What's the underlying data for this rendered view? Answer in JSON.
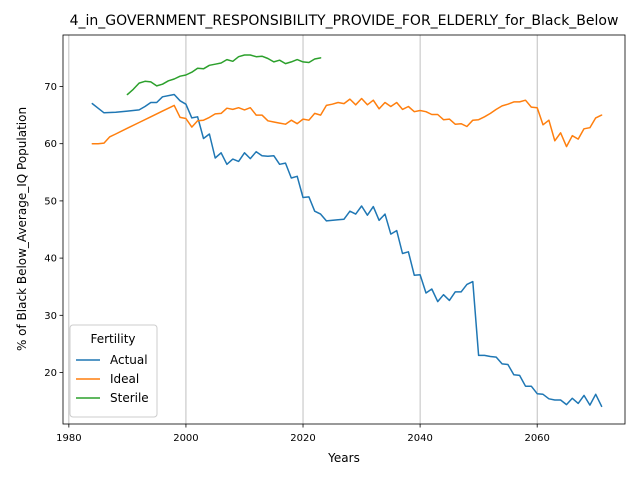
{
  "chart_data": {
    "type": "line",
    "title": "4_in_GOVERNMENT_RESPONSIBILITY_PROVIDE_FOR_ELDERLY_for_Black_Below",
    "xlabel": "Years",
    "ylabel": "% of Black Below_Average_IQ Population",
    "xlim": [
      1979,
      2075
    ],
    "ylim": [
      11,
      79
    ],
    "xticks": [
      1980,
      2000,
      2020,
      2040,
      2060
    ],
    "yticks": [
      20,
      30,
      40,
      50,
      60,
      70
    ],
    "xtick_labels": [
      "1980",
      "2000",
      "2020",
      "2040",
      "2060"
    ],
    "ytick_labels": [
      "20",
      "30",
      "40",
      "50",
      "60",
      "70"
    ],
    "grid": "x-axis vertical gridlines",
    "legend": {
      "title": "Fertility",
      "placement": "lower-left"
    },
    "series": [
      {
        "name": "Actual",
        "color": "#1f77b4",
        "points": [
          [
            1984,
            67.0
          ],
          [
            1985,
            66.2
          ],
          [
            1986,
            65.4
          ],
          [
            1988,
            65.5
          ],
          [
            1990,
            65.7
          ],
          [
            1992,
            65.9
          ],
          [
            1993,
            66.5
          ],
          [
            1994,
            67.2
          ],
          [
            1995,
            67.2
          ],
          [
            1996,
            68.2
          ],
          [
            1998,
            68.6
          ],
          [
            1999,
            67.5
          ],
          [
            2000,
            66.9
          ],
          [
            2001,
            64.5
          ],
          [
            2002,
            64.7
          ],
          [
            2003,
            60.9
          ],
          [
            2004,
            61.7
          ],
          [
            2005,
            57.5
          ],
          [
            2006,
            58.4
          ],
          [
            2007,
            56.4
          ],
          [
            2008,
            57.3
          ],
          [
            2009,
            56.9
          ],
          [
            2010,
            58.4
          ],
          [
            2011,
            57.4
          ],
          [
            2012,
            58.6
          ],
          [
            2013,
            57.9
          ],
          [
            2014,
            57.8
          ],
          [
            2015,
            57.9
          ],
          [
            2016,
            56.4
          ],
          [
            2017,
            56.6
          ],
          [
            2018,
            54.0
          ],
          [
            2019,
            54.3
          ],
          [
            2020,
            50.6
          ],
          [
            2021,
            50.7
          ],
          [
            2022,
            48.2
          ],
          [
            2023,
            47.7
          ],
          [
            2024,
            46.5
          ],
          [
            2026,
            46.7
          ],
          [
            2027,
            46.8
          ],
          [
            2028,
            48.2
          ],
          [
            2029,
            47.7
          ],
          [
            2030,
            49.1
          ],
          [
            2031,
            47.5
          ],
          [
            2032,
            49.0
          ],
          [
            2033,
            46.6
          ],
          [
            2034,
            47.7
          ],
          [
            2035,
            44.2
          ],
          [
            2036,
            44.8
          ],
          [
            2037,
            40.8
          ],
          [
            2038,
            41.1
          ],
          [
            2039,
            37.0
          ],
          [
            2040,
            37.1
          ],
          [
            2041,
            33.9
          ],
          [
            2042,
            34.6
          ],
          [
            2043,
            32.4
          ],
          [
            2044,
            33.6
          ],
          [
            2045,
            32.6
          ],
          [
            2046,
            34.1
          ],
          [
            2047,
            34.1
          ],
          [
            2048,
            35.4
          ],
          [
            2049,
            35.9
          ],
          [
            2050,
            23.0
          ],
          [
            2051,
            23.0
          ],
          [
            2052,
            22.8
          ],
          [
            2053,
            22.7
          ],
          [
            2054,
            21.5
          ],
          [
            2055,
            21.4
          ],
          [
            2056,
            19.6
          ],
          [
            2057,
            19.5
          ],
          [
            2058,
            17.6
          ],
          [
            2059,
            17.6
          ],
          [
            2060,
            16.3
          ],
          [
            2061,
            16.2
          ],
          [
            2062,
            15.4
          ],
          [
            2063,
            15.2
          ],
          [
            2064,
            15.2
          ],
          [
            2065,
            14.4
          ],
          [
            2066,
            15.5
          ],
          [
            2067,
            14.6
          ],
          [
            2068,
            16.0
          ],
          [
            2069,
            14.3
          ],
          [
            2070,
            16.2
          ],
          [
            2071,
            14.1
          ]
        ]
      },
      {
        "name": "Ideal",
        "color": "#ff7f0e",
        "points": [
          [
            1984,
            60.0
          ],
          [
            1985,
            60.0
          ],
          [
            1986,
            60.1
          ],
          [
            1987,
            61.2
          ],
          [
            1988,
            61.7
          ],
          [
            1990,
            62.7
          ],
          [
            1992,
            63.7
          ],
          [
            1994,
            64.7
          ],
          [
            1996,
            65.7
          ],
          [
            1998,
            66.7
          ],
          [
            1999,
            64.6
          ],
          [
            2000,
            64.4
          ],
          [
            2001,
            62.9
          ],
          [
            2002,
            64.0
          ],
          [
            2003,
            64.1
          ],
          [
            2004,
            64.6
          ],
          [
            2005,
            65.2
          ],
          [
            2006,
            65.3
          ],
          [
            2007,
            66.2
          ],
          [
            2008,
            66.0
          ],
          [
            2009,
            66.3
          ],
          [
            2010,
            65.9
          ],
          [
            2011,
            66.3
          ],
          [
            2012,
            65.0
          ],
          [
            2013,
            65.0
          ],
          [
            2014,
            64.0
          ],
          [
            2015,
            63.8
          ],
          [
            2016,
            63.6
          ],
          [
            2017,
            63.4
          ],
          [
            2018,
            64.1
          ],
          [
            2019,
            63.5
          ],
          [
            2020,
            64.3
          ],
          [
            2021,
            64.1
          ],
          [
            2022,
            65.3
          ],
          [
            2023,
            65.0
          ],
          [
            2024,
            66.7
          ],
          [
            2025,
            66.9
          ],
          [
            2026,
            67.2
          ],
          [
            2027,
            67.0
          ],
          [
            2028,
            67.8
          ],
          [
            2029,
            66.8
          ],
          [
            2030,
            67.9
          ],
          [
            2031,
            66.8
          ],
          [
            2032,
            67.6
          ],
          [
            2033,
            66.1
          ],
          [
            2034,
            67.2
          ],
          [
            2035,
            66.5
          ],
          [
            2036,
            67.2
          ],
          [
            2037,
            66.0
          ],
          [
            2038,
            66.5
          ],
          [
            2039,
            65.6
          ],
          [
            2040,
            65.8
          ],
          [
            2041,
            65.6
          ],
          [
            2042,
            65.1
          ],
          [
            2043,
            65.1
          ],
          [
            2044,
            64.2
          ],
          [
            2045,
            64.3
          ],
          [
            2046,
            63.4
          ],
          [
            2047,
            63.5
          ],
          [
            2048,
            63.0
          ],
          [
            2049,
            64.1
          ],
          [
            2050,
            64.2
          ],
          [
            2051,
            64.7
          ],
          [
            2052,
            65.3
          ],
          [
            2053,
            66.0
          ],
          [
            2054,
            66.6
          ],
          [
            2055,
            66.9
          ],
          [
            2056,
            67.3
          ],
          [
            2057,
            67.3
          ],
          [
            2058,
            67.6
          ],
          [
            2059,
            66.4
          ],
          [
            2060,
            66.3
          ],
          [
            2061,
            63.3
          ],
          [
            2062,
            64.1
          ],
          [
            2063,
            60.5
          ],
          [
            2064,
            61.9
          ],
          [
            2065,
            59.5
          ],
          [
            2066,
            61.4
          ],
          [
            2067,
            60.8
          ],
          [
            2068,
            62.6
          ],
          [
            2069,
            62.8
          ],
          [
            2070,
            64.5
          ],
          [
            2071,
            65.0
          ]
        ]
      },
      {
        "name": "Sterile",
        "color": "#2ca02c",
        "points": [
          [
            1990,
            68.6
          ],
          [
            1991,
            69.5
          ],
          [
            1992,
            70.6
          ],
          [
            1993,
            70.9
          ],
          [
            1994,
            70.8
          ],
          [
            1995,
            70.1
          ],
          [
            1996,
            70.4
          ],
          [
            1997,
            71.0
          ],
          [
            1998,
            71.3
          ],
          [
            1999,
            71.8
          ],
          [
            2000,
            72.0
          ],
          [
            2001,
            72.5
          ],
          [
            2002,
            73.2
          ],
          [
            2003,
            73.1
          ],
          [
            2004,
            73.7
          ],
          [
            2005,
            73.9
          ],
          [
            2006,
            74.1
          ],
          [
            2007,
            74.7
          ],
          [
            2008,
            74.4
          ],
          [
            2009,
            75.2
          ],
          [
            2010,
            75.5
          ],
          [
            2011,
            75.5
          ],
          [
            2012,
            75.2
          ],
          [
            2013,
            75.3
          ],
          [
            2014,
            74.9
          ],
          [
            2015,
            74.3
          ],
          [
            2016,
            74.6
          ],
          [
            2017,
            74.0
          ],
          [
            2018,
            74.3
          ],
          [
            2019,
            74.7
          ],
          [
            2020,
            74.3
          ],
          [
            2021,
            74.2
          ],
          [
            2022,
            74.8
          ],
          [
            2023,
            75.0
          ]
        ]
      }
    ]
  }
}
